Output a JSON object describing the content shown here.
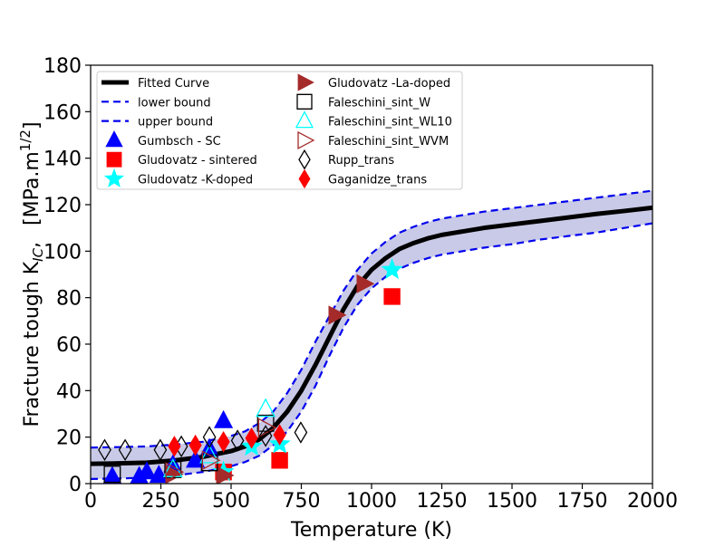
{
  "chart_data": {
    "type": "scatter",
    "title": "",
    "xlabel": "Temperature (K)",
    "ylabel_main": "Fracture tough K",
    "ylabel_sub": "IC",
    "ylabel_sep": ",",
    "ylabel_unit": "[MPa.m",
    "ylabel_unit_sup": "1/2",
    "ylabel_unit_end": "]",
    "xlim": [
      0,
      2000
    ],
    "ylim": [
      0,
      180
    ],
    "xticks": [
      0,
      250,
      500,
      750,
      1000,
      1250,
      1500,
      1750,
      2000
    ],
    "yticks": [
      0,
      20,
      40,
      60,
      80,
      100,
      120,
      140,
      160,
      180
    ],
    "grid": false,
    "legend_position": "upper-left",
    "band_color": "#c9cae7",
    "fitted_curve": {
      "name": "Fitted Curve",
      "color": "#000000",
      "x": [
        0,
        100,
        200,
        300,
        400,
        500,
        550,
        600,
        650,
        700,
        750,
        800,
        850,
        900,
        950,
        1000,
        1050,
        1100,
        1150,
        1200,
        1250,
        1300,
        1400,
        1500,
        1600,
        1700,
        1800,
        1900,
        2000
      ],
      "y": [
        8.5,
        8.7,
        9,
        10,
        11.5,
        14,
        16,
        19,
        24,
        31,
        40,
        51,
        63,
        75,
        85,
        92,
        97,
        101,
        103.5,
        105.5,
        107,
        108,
        110,
        111.5,
        113,
        114.5,
        116,
        117.3,
        118.7
      ]
    },
    "lower_bound": {
      "name": "lower bound",
      "color": "#0000ee",
      "x": [
        0,
        100,
        200,
        300,
        400,
        500,
        550,
        600,
        650,
        700,
        750,
        800,
        850,
        900,
        950,
        1000,
        1050,
        1100,
        1150,
        1200,
        1250,
        1300,
        1400,
        1500,
        1600,
        1700,
        1800,
        1900,
        2000
      ],
      "y": [
        2,
        2.2,
        2.6,
        3.5,
        5,
        7.5,
        9.3,
        12,
        16.5,
        22.5,
        31,
        42,
        55,
        67,
        77,
        84,
        89,
        92.5,
        95,
        97,
        98.5,
        99.5,
        101.5,
        103,
        105,
        106.5,
        108,
        110,
        112
      ]
    },
    "upper_bound": {
      "name": "upper bound",
      "color": "#0000ee",
      "x": [
        0,
        100,
        200,
        300,
        400,
        500,
        550,
        600,
        650,
        700,
        750,
        800,
        850,
        900,
        950,
        1000,
        1050,
        1100,
        1150,
        1200,
        1250,
        1300,
        1400,
        1500,
        1600,
        1700,
        1800,
        1900,
        2000
      ],
      "y": [
        15.5,
        15.7,
        16,
        16.8,
        18,
        20.5,
        22.5,
        26,
        31,
        39,
        49,
        61,
        72,
        83,
        92,
        99,
        104,
        108,
        110.5,
        112.5,
        114,
        115,
        117,
        118.5,
        120,
        121.5,
        123,
        124.5,
        126
      ]
    },
    "series": [
      {
        "name": "Gumbsch - SC",
        "marker": "triangle-up",
        "fill": "#0000ff",
        "stroke": "#0000ff",
        "x": [
          77,
          173,
          200,
          243,
          293,
          373,
          423,
          473
        ],
        "y": [
          3,
          3,
          5,
          3.5,
          8,
          10,
          15,
          27
        ]
      },
      {
        "name": "Gludovatz - sintered",
        "marker": "square",
        "fill": "#ff0000",
        "stroke": "#ff0000",
        "x": [
          473,
          673,
          1073
        ],
        "y": [
          5,
          10,
          80.5
        ]
      },
      {
        "name": "Gludovatz -K-doped",
        "marker": "star",
        "fill": "#00ffff",
        "stroke": "#00ffff",
        "x": [
          473,
          573,
          673,
          1073
        ],
        "y": [
          5,
          16,
          17,
          92
        ]
      },
      {
        "name": "Gludovatz -La-doped",
        "marker": "triangle-right",
        "fill": "#a52a2a",
        "stroke": "#a52a2a",
        "x": [
          293,
          473,
          873,
          973
        ],
        "y": [
          4,
          3.5,
          72.5,
          86
        ]
      },
      {
        "name": "Faleschini_sint_W",
        "marker": "square-open",
        "fill": "none",
        "stroke": "#000000",
        "x": [
          77,
          293,
          423,
          623
        ],
        "y": [
          4,
          6,
          9,
          26
        ]
      },
      {
        "name": "Faleschini_sint_WL10",
        "marker": "triangle-up-open",
        "fill": "none",
        "stroke": "#00ffff",
        "x": [
          293,
          423,
          623
        ],
        "y": [
          6,
          12,
          32
        ]
      },
      {
        "name": "Faleschini_sint_WVM",
        "marker": "triangle-right-open",
        "fill": "none",
        "stroke": "#a52a2a",
        "x": [
          293,
          423,
          623
        ],
        "y": [
          5,
          10,
          24
        ]
      },
      {
        "name": "Rupp_trans",
        "marker": "diamond-open",
        "fill": "none",
        "stroke": "#000000",
        "x": [
          50,
          123,
          248,
          323,
          423,
          523,
          623,
          748
        ],
        "y": [
          14.5,
          14.5,
          14.5,
          16,
          20,
          18.5,
          20.5,
          22
        ]
      },
      {
        "name": "Gaganidze_trans",
        "marker": "diamond",
        "fill": "#ff0000",
        "stroke": "#ff0000",
        "x": [
          298,
          373,
          473,
          573,
          673
        ],
        "y": [
          16,
          16.5,
          18,
          19.5,
          21
        ]
      }
    ]
  }
}
